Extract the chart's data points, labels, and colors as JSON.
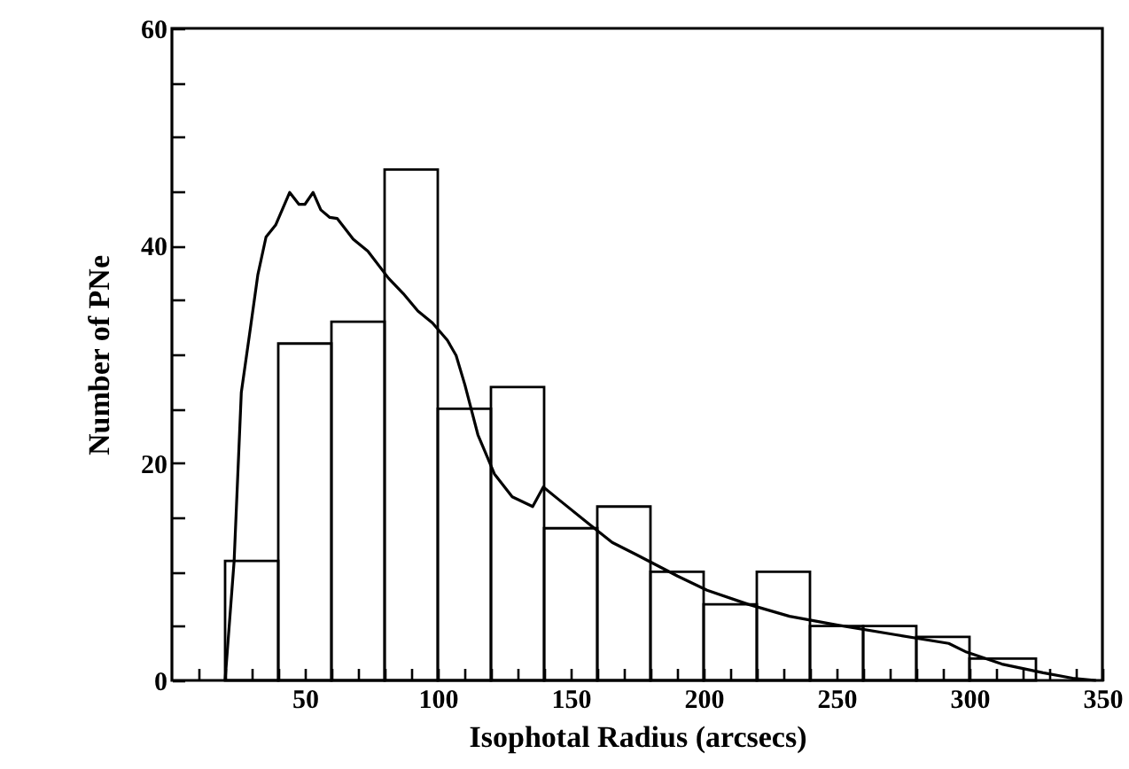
{
  "chart_data": {
    "type": "histogram",
    "xlabel": "Isophotal Radius (arcsecs)",
    "ylabel": "Number of PNe",
    "bins": [
      20,
      40,
      60,
      80,
      100,
      120,
      140,
      160,
      180,
      200,
      220,
      240,
      260,
      280,
      300,
      325
    ],
    "values": [
      11,
      31,
      33,
      47,
      25,
      27,
      14,
      16,
      10,
      7,
      10,
      5,
      5,
      4,
      2
    ],
    "color": "#000000",
    "series": [
      {
        "type": "line",
        "color": "#000000",
        "x": [
          20,
          23.4,
          26.1,
          29.4,
          32.3,
          35.4,
          39,
          44.3,
          47.8,
          50,
          53.1,
          56,
          59.4,
          62.2,
          68.2,
          73.7,
          81.5,
          87,
          92.5,
          98,
          103.6,
          106.9,
          110.2,
          115.1,
          121.3,
          128,
          135.7,
          139.7,
          145.7,
          156.8,
          165.6,
          174.5,
          190.2,
          201.3,
          216.8,
          232.3,
          250,
          272.3,
          292.2,
          298.9,
          312.2,
          327.7,
          338.8,
          347.6
        ],
        "values": [
          0,
          11,
          26.5,
          32.2,
          37.3,
          40.8,
          41.9,
          44.9,
          43.8,
          43.8,
          44.9,
          43.3,
          42.6,
          42.5,
          40.6,
          39.5,
          37,
          35.6,
          34,
          32.9,
          31.3,
          29.9,
          27.2,
          22.6,
          19,
          16.9,
          16,
          17.8,
          16.6,
          14.4,
          12.7,
          11.6,
          9.6,
          8.3,
          7,
          5.9,
          5.1,
          4.2,
          3.4,
          2.6,
          1.5,
          0.7,
          0.2,
          0
        ]
      }
    ],
    "xlim": [
      0,
      350
    ],
    "xticks": [
      {
        "value": 10,
        "label": null
      },
      {
        "value": 20,
        "label": null
      },
      {
        "value": 30,
        "label": null
      },
      {
        "value": 40,
        "label": null
      },
      50,
      {
        "value": 60,
        "label": null
      },
      {
        "value": 70,
        "label": null
      },
      {
        "value": 80,
        "label": null
      },
      {
        "value": 90,
        "label": null
      },
      100,
      {
        "value": 110,
        "label": null
      },
      {
        "value": 120,
        "label": null
      },
      {
        "value": 130,
        "label": null
      },
      {
        "value": 140,
        "label": null
      },
      150,
      {
        "value": 160,
        "label": null
      },
      {
        "value": 170,
        "label": null
      },
      {
        "value": 180,
        "label": null
      },
      {
        "value": 190,
        "label": null
      },
      200,
      {
        "value": 210,
        "label": null
      },
      {
        "value": 220,
        "label": null
      },
      {
        "value": 230,
        "label": null
      },
      {
        "value": 240,
        "label": null
      },
      250,
      {
        "value": 260,
        "label": null
      },
      {
        "value": 270,
        "label": null
      },
      {
        "value": 280,
        "label": null
      },
      {
        "value": 290,
        "label": null
      },
      300,
      {
        "value": 310,
        "label": null
      },
      {
        "value": 320,
        "label": null
      },
      {
        "value": 330,
        "label": null
      },
      {
        "value": 340,
        "label": null
      },
      350
    ],
    "ylim": [
      0,
      60
    ],
    "yticks": [
      0,
      {
        "value": 5,
        "label": null
      },
      {
        "value": 10,
        "label": null
      },
      {
        "value": 15,
        "label": null
      },
      20,
      {
        "value": 25,
        "label": null
      },
      {
        "value": 30,
        "label": null
      },
      {
        "value": 35,
        "label": null
      },
      40,
      {
        "value": 45,
        "label": null
      },
      {
        "value": 50,
        "label": null
      },
      {
        "value": 55,
        "label": null
      },
      60
    ],
    "grid": false
  }
}
